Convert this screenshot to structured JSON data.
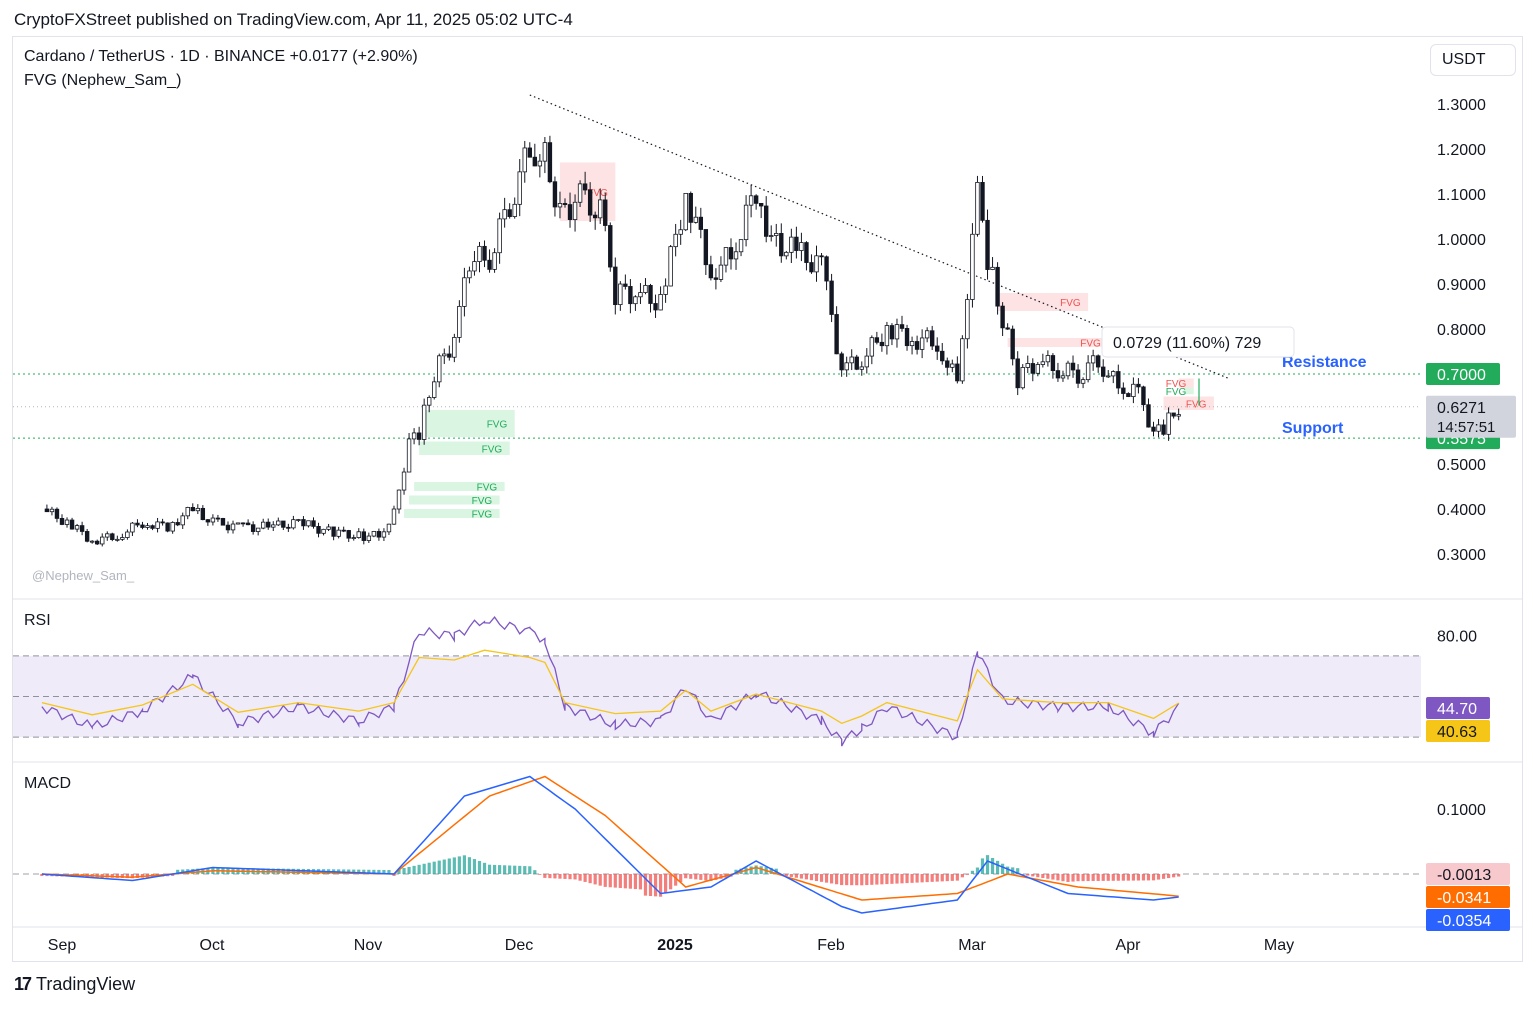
{
  "header": {
    "publisher": "CryptoFXStreet published on TradingView.com, Apr 11, 2025 05:02 UTC-4",
    "symbol_line": "Cardano / TetherUS · 1D · BINANCE  +0.0177 (+2.90%)",
    "indicator_line": "FVG (Nephew_Sam_)",
    "currency": "USDT",
    "watermark": "@Nephew_Sam_"
  },
  "footer": {
    "logo": "17",
    "brand": "TradingView"
  },
  "chart_data": {
    "type": "candlestick",
    "title": "Cardano / TetherUS · 1D · BINANCE",
    "change": "+0.0177 (+2.90%)",
    "price_axis": {
      "ticks": [
        "1.3000",
        "1.2000",
        "1.1000",
        "1.0000",
        "0.9000",
        "0.8000",
        "0.5000",
        "0.4000",
        "0.3000"
      ],
      "tick_values": [
        1.3,
        1.2,
        1.1,
        1.0,
        0.9,
        0.8,
        0.5,
        0.4,
        0.3
      ]
    },
    "time_axis": {
      "labels": [
        "Sep",
        "Oct",
        "Nov",
        "Dec",
        "2025",
        "Feb",
        "Mar",
        "Apr",
        "May"
      ]
    },
    "price_series": {
      "name": "ADA/USDT",
      "points": [
        [
          "2024-08-28",
          0.4
        ],
        [
          "2024-09-02",
          0.37
        ],
        [
          "2024-09-07",
          0.33
        ],
        [
          "2024-09-12",
          0.34
        ],
        [
          "2024-09-17",
          0.37
        ],
        [
          "2024-09-22",
          0.36
        ],
        [
          "2024-09-27",
          0.4
        ],
        [
          "2024-10-01",
          0.37
        ],
        [
          "2024-10-06",
          0.36
        ],
        [
          "2024-10-12",
          0.36
        ],
        [
          "2024-10-18",
          0.37
        ],
        [
          "2024-10-24",
          0.35
        ],
        [
          "2024-10-30",
          0.34
        ],
        [
          "2024-11-03",
          0.34
        ],
        [
          "2024-11-06",
          0.39
        ],
        [
          "2024-11-09",
          0.55
        ],
        [
          "2024-11-11",
          0.57
        ],
        [
          "2024-11-14",
          0.7
        ],
        [
          "2024-11-18",
          0.78
        ],
        [
          "2024-11-21",
          0.95
        ],
        [
          "2024-11-25",
          0.96
        ],
        [
          "2024-11-29",
          1.08
        ],
        [
          "2024-12-03",
          1.2
        ],
        [
          "2024-12-06",
          1.18
        ],
        [
          "2024-12-09",
          1.06
        ],
        [
          "2024-12-13",
          1.09
        ],
        [
          "2024-12-17",
          1.06
        ],
        [
          "2024-12-20",
          0.88
        ],
        [
          "2024-12-24",
          0.88
        ],
        [
          "2024-12-29",
          0.86
        ],
        [
          "2025-01-03",
          1.1
        ],
        [
          "2025-01-08",
          0.93
        ],
        [
          "2025-01-12",
          0.96
        ],
        [
          "2025-01-17",
          1.11
        ],
        [
          "2025-01-20",
          1.0
        ],
        [
          "2025-01-25",
          0.97
        ],
        [
          "2025-01-30",
          0.94
        ],
        [
          "2025-02-03",
          0.71
        ],
        [
          "2025-02-07",
          0.73
        ],
        [
          "2025-02-12",
          0.8
        ],
        [
          "2025-02-17",
          0.78
        ],
        [
          "2025-02-22",
          0.77
        ],
        [
          "2025-02-26",
          0.68
        ],
        [
          "2025-03-02",
          1.1
        ],
        [
          "2025-03-04",
          0.96
        ],
        [
          "2025-03-07",
          0.82
        ],
        [
          "2025-03-10",
          0.69
        ],
        [
          "2025-03-14",
          0.73
        ],
        [
          "2025-03-18",
          0.71
        ],
        [
          "2025-03-22",
          0.7
        ],
        [
          "2025-03-26",
          0.73
        ],
        [
          "2025-03-30",
          0.67
        ],
        [
          "2025-04-03",
          0.66
        ],
        [
          "2025-04-06",
          0.57
        ],
        [
          "2025-04-08",
          0.58
        ],
        [
          "2025-04-11",
          0.6271
        ]
      ]
    },
    "trendline": {
      "from": [
        "2024-12-03",
        1.32
      ],
      "to": [
        "2025-04-21",
        0.69
      ],
      "style": "dotted"
    },
    "levels": [
      {
        "name": "Resistance",
        "value": 0.7,
        "label": "0.7000",
        "color": "#2962ff",
        "badge_color": "#22ab5a"
      },
      {
        "name": "Support",
        "value": 0.5575,
        "label": "0.5575",
        "color": "#2962ff",
        "badge_color": "#22ab5a"
      }
    ],
    "current_price": {
      "value": 0.6271,
      "label": "0.6271",
      "countdown": "14:57:51"
    },
    "measure_tooltip": "0.0729 (11.60%) 729",
    "fvg": [
      {
        "label": "FVG",
        "type": "bearish",
        "from": "2024-12-09",
        "to": "2024-12-20",
        "low": 1.04,
        "high": 1.17
      },
      {
        "label": "FVG",
        "type": "bearish",
        "from": "2025-03-06",
        "to": "2025-03-24",
        "low": 0.84,
        "high": 0.88
      },
      {
        "label": "FVG",
        "type": "bearish",
        "from": "2025-03-08",
        "to": "2025-03-28",
        "low": 0.76,
        "high": 0.78
      },
      {
        "label": "FVG",
        "type": "bearish",
        "from": "2025-04-08",
        "to": "2025-04-18",
        "low": 0.62,
        "high": 0.65
      },
      {
        "label": "FVG",
        "type": "bearish",
        "from": "2025-04-11",
        "to": "2025-04-14",
        "low": 0.67,
        "high": 0.69
      },
      {
        "label": "FVG",
        "type": "bullish",
        "from": "2025-04-12",
        "to": "2025-04-14",
        "low": 0.655,
        "high": 0.67
      },
      {
        "label": "FVG",
        "type": "bullish",
        "from": "2024-11-12",
        "to": "2024-11-30",
        "low": 0.56,
        "high": 0.62
      },
      {
        "label": "FVG",
        "type": "bullish",
        "from": "2024-11-11",
        "to": "2024-11-29",
        "low": 0.52,
        "high": 0.55
      },
      {
        "label": "FVG",
        "type": "bullish",
        "from": "2024-11-10",
        "to": "2024-11-28",
        "low": 0.44,
        "high": 0.46
      },
      {
        "label": "FVG",
        "type": "bullish",
        "from": "2024-11-09",
        "to": "2024-11-27",
        "low": 0.41,
        "high": 0.43
      },
      {
        "label": "FVG",
        "type": "bullish",
        "from": "2024-11-08",
        "to": "2024-11-27",
        "low": 0.38,
        "high": 0.4
      }
    ],
    "rsi": {
      "name": "RSI",
      "tick": "80.00",
      "value_label": "44.70",
      "ma_label": "40.63",
      "value_color": "#7e57c2",
      "ma_color": "#f5c518",
      "band": [
        30,
        70
      ],
      "points": [
        [
          "2024-08-28",
          45
        ],
        [
          "2024-09-07",
          35
        ],
        [
          "2024-09-17",
          43
        ],
        [
          "2024-09-27",
          60
        ],
        [
          "2024-10-06",
          37
        ],
        [
          "2024-10-18",
          45
        ],
        [
          "2024-10-30",
          38
        ],
        [
          "2024-11-06",
          45
        ],
        [
          "2024-11-11",
          82
        ],
        [
          "2024-11-18",
          80
        ],
        [
          "2024-11-24",
          88
        ],
        [
          "2024-12-03",
          82
        ],
        [
          "2024-12-06",
          78
        ],
        [
          "2024-12-10",
          45
        ],
        [
          "2024-12-20",
          36
        ],
        [
          "2024-12-29",
          38
        ],
        [
          "2025-01-03",
          55
        ],
        [
          "2025-01-08",
          38
        ],
        [
          "2025-01-17",
          52
        ],
        [
          "2025-01-30",
          38
        ],
        [
          "2025-02-03",
          28
        ],
        [
          "2025-02-07",
          34
        ],
        [
          "2025-02-12",
          45
        ],
        [
          "2025-02-26",
          30
        ],
        [
          "2025-03-02",
          72
        ],
        [
          "2025-03-07",
          48
        ],
        [
          "2025-03-18",
          45
        ],
        [
          "2025-03-28",
          45
        ],
        [
          "2025-04-06",
          32
        ],
        [
          "2025-04-11",
          44.7
        ]
      ]
    },
    "macd": {
      "name": "MACD",
      "tick": "0.1000",
      "labels": [
        "-0.0013",
        "-0.0341",
        "-0.0354"
      ],
      "colors": {
        "macd": "#2962ff",
        "signal": "#ff6d00",
        "hist_up": "#26a69a",
        "hist_down": "#ef5350",
        "hist_badge": "#f8c9cc"
      },
      "macd_points": [
        [
          "2024-08-28",
          0
        ],
        [
          "2024-09-15",
          -0.01
        ],
        [
          "2024-10-01",
          0.01
        ],
        [
          "2024-11-06",
          0
        ],
        [
          "2024-11-20",
          0.12
        ],
        [
          "2024-12-03",
          0.15
        ],
        [
          "2024-12-12",
          0.1
        ],
        [
          "2024-12-29",
          -0.03
        ],
        [
          "2025-01-08",
          -0.02
        ],
        [
          "2025-01-17",
          0.02
        ],
        [
          "2025-02-03",
          -0.05
        ],
        [
          "2025-02-07",
          -0.06
        ],
        [
          "2025-02-26",
          -0.04
        ],
        [
          "2025-03-04",
          0.02
        ],
        [
          "2025-03-20",
          -0.03
        ],
        [
          "2025-04-06",
          -0.04
        ],
        [
          "2025-04-11",
          -0.0354
        ]
      ],
      "signal_points": [
        [
          "2024-08-28",
          0
        ],
        [
          "2024-09-15",
          -0.005
        ],
        [
          "2024-10-01",
          0.005
        ],
        [
          "2024-11-06",
          0
        ],
        [
          "2024-11-25",
          0.12
        ],
        [
          "2024-12-06",
          0.15
        ],
        [
          "2024-12-18",
          0.09
        ],
        [
          "2025-01-03",
          -0.02
        ],
        [
          "2025-01-17",
          0.01
        ],
        [
          "2025-02-07",
          -0.04
        ],
        [
          "2025-02-26",
          -0.03
        ],
        [
          "2025-03-08",
          0.0
        ],
        [
          "2025-03-22",
          -0.02
        ],
        [
          "2025-04-11",
          -0.0341
        ]
      ]
    }
  }
}
